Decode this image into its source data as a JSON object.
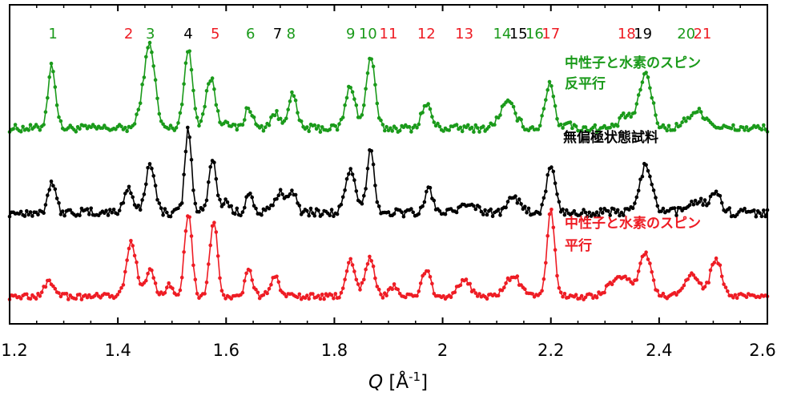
{
  "colors": {
    "green": "#1a9a1a",
    "black": "#000000",
    "red": "#ee1c24"
  },
  "chart_data": {
    "type": "line",
    "xlabel_main": "Q",
    "xlabel_unit_open": " [Å",
    "xlabel_unit_exp": "-1",
    "xlabel_unit_close": "]",
    "xlim": [
      1.2,
      2.6
    ],
    "ylabel": "",
    "grid": false,
    "x_ticks": [
      1.2,
      1.4,
      1.6,
      1.8,
      2,
      2.2,
      2.4,
      2.6
    ],
    "x_tick_labels": [
      "1.2",
      "1.4",
      "1.6",
      "1.8",
      "2",
      "2.2",
      "2.4",
      "2.6"
    ],
    "peak_labels": [
      {
        "text": "1",
        "x": 1.28,
        "color": "green"
      },
      {
        "text": "2",
        "x": 1.42,
        "color": "red"
      },
      {
        "text": "3",
        "x": 1.46,
        "color": "green"
      },
      {
        "text": "4",
        "x": 1.53,
        "color": "black"
      },
      {
        "text": "5",
        "x": 1.58,
        "color": "red"
      },
      {
        "text": "6",
        "x": 1.645,
        "color": "green"
      },
      {
        "text": "7",
        "x": 1.695,
        "color": "black"
      },
      {
        "text": "8",
        "x": 1.72,
        "color": "green"
      },
      {
        "text": "9",
        "x": 1.83,
        "color": "green"
      },
      {
        "text": "10",
        "x": 1.862,
        "color": "green"
      },
      {
        "text": "11",
        "x": 1.9,
        "color": "red"
      },
      {
        "text": "12",
        "x": 1.97,
        "color": "red"
      },
      {
        "text": "13",
        "x": 2.04,
        "color": "red"
      },
      {
        "text": "14",
        "x": 2.11,
        "color": "green"
      },
      {
        "text": "15",
        "x": 2.14,
        "color": "black"
      },
      {
        "text": "16",
        "x": 2.17,
        "color": "green"
      },
      {
        "text": "17",
        "x": 2.2,
        "color": "red"
      },
      {
        "text": "18",
        "x": 2.34,
        "color": "red"
      },
      {
        "text": "19",
        "x": 2.37,
        "color": "black"
      },
      {
        "text": "20",
        "x": 2.45,
        "color": "green"
      },
      {
        "text": "21",
        "x": 2.48,
        "color": "red"
      }
    ],
    "series": [
      {
        "name": "中性子と水素のスピン反平行",
        "label_lines": [
          "中性子と水素のスピン",
          "反平行"
        ],
        "color": "green",
        "offset": 2.0,
        "peaks": [
          [
            1.278,
            0.75,
            0.007
          ],
          [
            1.46,
            0.95,
            0.009
          ],
          [
            1.445,
            0.25,
            0.008
          ],
          [
            1.53,
            0.92,
            0.008
          ],
          [
            1.565,
            0.3,
            0.007
          ],
          [
            1.575,
            0.45,
            0.007
          ],
          [
            1.6,
            0.12,
            0.005
          ],
          [
            1.642,
            0.25,
            0.007
          ],
          [
            1.69,
            0.18,
            0.008
          ],
          [
            1.722,
            0.4,
            0.008
          ],
          [
            1.83,
            0.5,
            0.009
          ],
          [
            1.867,
            0.85,
            0.008
          ],
          [
            1.97,
            0.28,
            0.009
          ],
          [
            2.12,
            0.3,
            0.014
          ],
          [
            2.198,
            0.55,
            0.008
          ],
          [
            2.23,
            0.08,
            0.006
          ],
          [
            2.375,
            0.65,
            0.011
          ],
          [
            2.34,
            0.15,
            0.012
          ],
          [
            2.47,
            0.2,
            0.018
          ]
        ],
        "noise": 0.045
      },
      {
        "name": "無偏極状態試料",
        "label_lines": [
          "無偏極状態試料"
        ],
        "color": "black",
        "offset": 1.0,
        "peaks": [
          [
            1.278,
            0.38,
            0.007
          ],
          [
            1.42,
            0.3,
            0.008
          ],
          [
            1.46,
            0.6,
            0.008
          ],
          [
            1.53,
            1.0,
            0.006
          ],
          [
            1.575,
            0.62,
            0.007
          ],
          [
            1.6,
            0.15,
            0.006
          ],
          [
            1.642,
            0.25,
            0.006
          ],
          [
            1.7,
            0.22,
            0.01
          ],
          [
            1.722,
            0.25,
            0.008
          ],
          [
            1.83,
            0.48,
            0.009
          ],
          [
            1.867,
            0.75,
            0.007
          ],
          [
            1.975,
            0.28,
            0.007
          ],
          [
            2.05,
            0.12,
            0.01
          ],
          [
            2.13,
            0.22,
            0.01
          ],
          [
            2.2,
            0.55,
            0.008
          ],
          [
            2.375,
            0.55,
            0.011
          ],
          [
            2.47,
            0.15,
            0.015
          ],
          [
            2.505,
            0.25,
            0.009
          ]
        ],
        "noise": 0.05
      },
      {
        "name": "中性子と水素のスピン平行",
        "label_lines": [
          "中性子と水素のスピン",
          "平行"
        ],
        "color": "red",
        "offset": 0.0,
        "peaks": [
          [
            1.275,
            0.18,
            0.01
          ],
          [
            1.425,
            0.65,
            0.009
          ],
          [
            1.46,
            0.3,
            0.008
          ],
          [
            1.495,
            0.15,
            0.006
          ],
          [
            1.53,
            1.0,
            0.007
          ],
          [
            1.577,
            0.92,
            0.007
          ],
          [
            1.642,
            0.3,
            0.007
          ],
          [
            1.69,
            0.25,
            0.008
          ],
          [
            1.83,
            0.45,
            0.008
          ],
          [
            1.865,
            0.45,
            0.009
          ],
          [
            1.91,
            0.12,
            0.008
          ],
          [
            1.97,
            0.32,
            0.008
          ],
          [
            2.04,
            0.18,
            0.012
          ],
          [
            2.13,
            0.25,
            0.013
          ],
          [
            2.2,
            1.05,
            0.007
          ],
          [
            2.33,
            0.25,
            0.02
          ],
          [
            2.375,
            0.5,
            0.01
          ],
          [
            2.46,
            0.25,
            0.014
          ],
          [
            2.505,
            0.45,
            0.01
          ]
        ],
        "noise": 0.035
      }
    ]
  }
}
